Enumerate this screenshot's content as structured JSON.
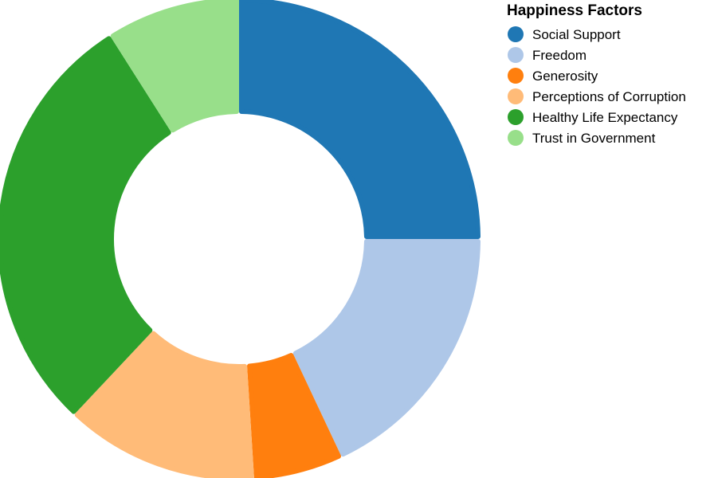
{
  "chart_data": {
    "type": "pie",
    "variant": "donut",
    "legend_title": "Happiness Factors",
    "legend_position": "top-right",
    "categories": [
      "Social Support",
      "Freedom",
      "Generosity",
      "Perceptions of Corruption",
      "Healthy Life Expectancy",
      "Trust in Government"
    ],
    "values": [
      25,
      18,
      6,
      13,
      29,
      9
    ],
    "colors": [
      "#1f77b4",
      "#aec7e8",
      "#ff7f0e",
      "#ffbb78",
      "#2ca02c",
      "#98df8a"
    ]
  }
}
